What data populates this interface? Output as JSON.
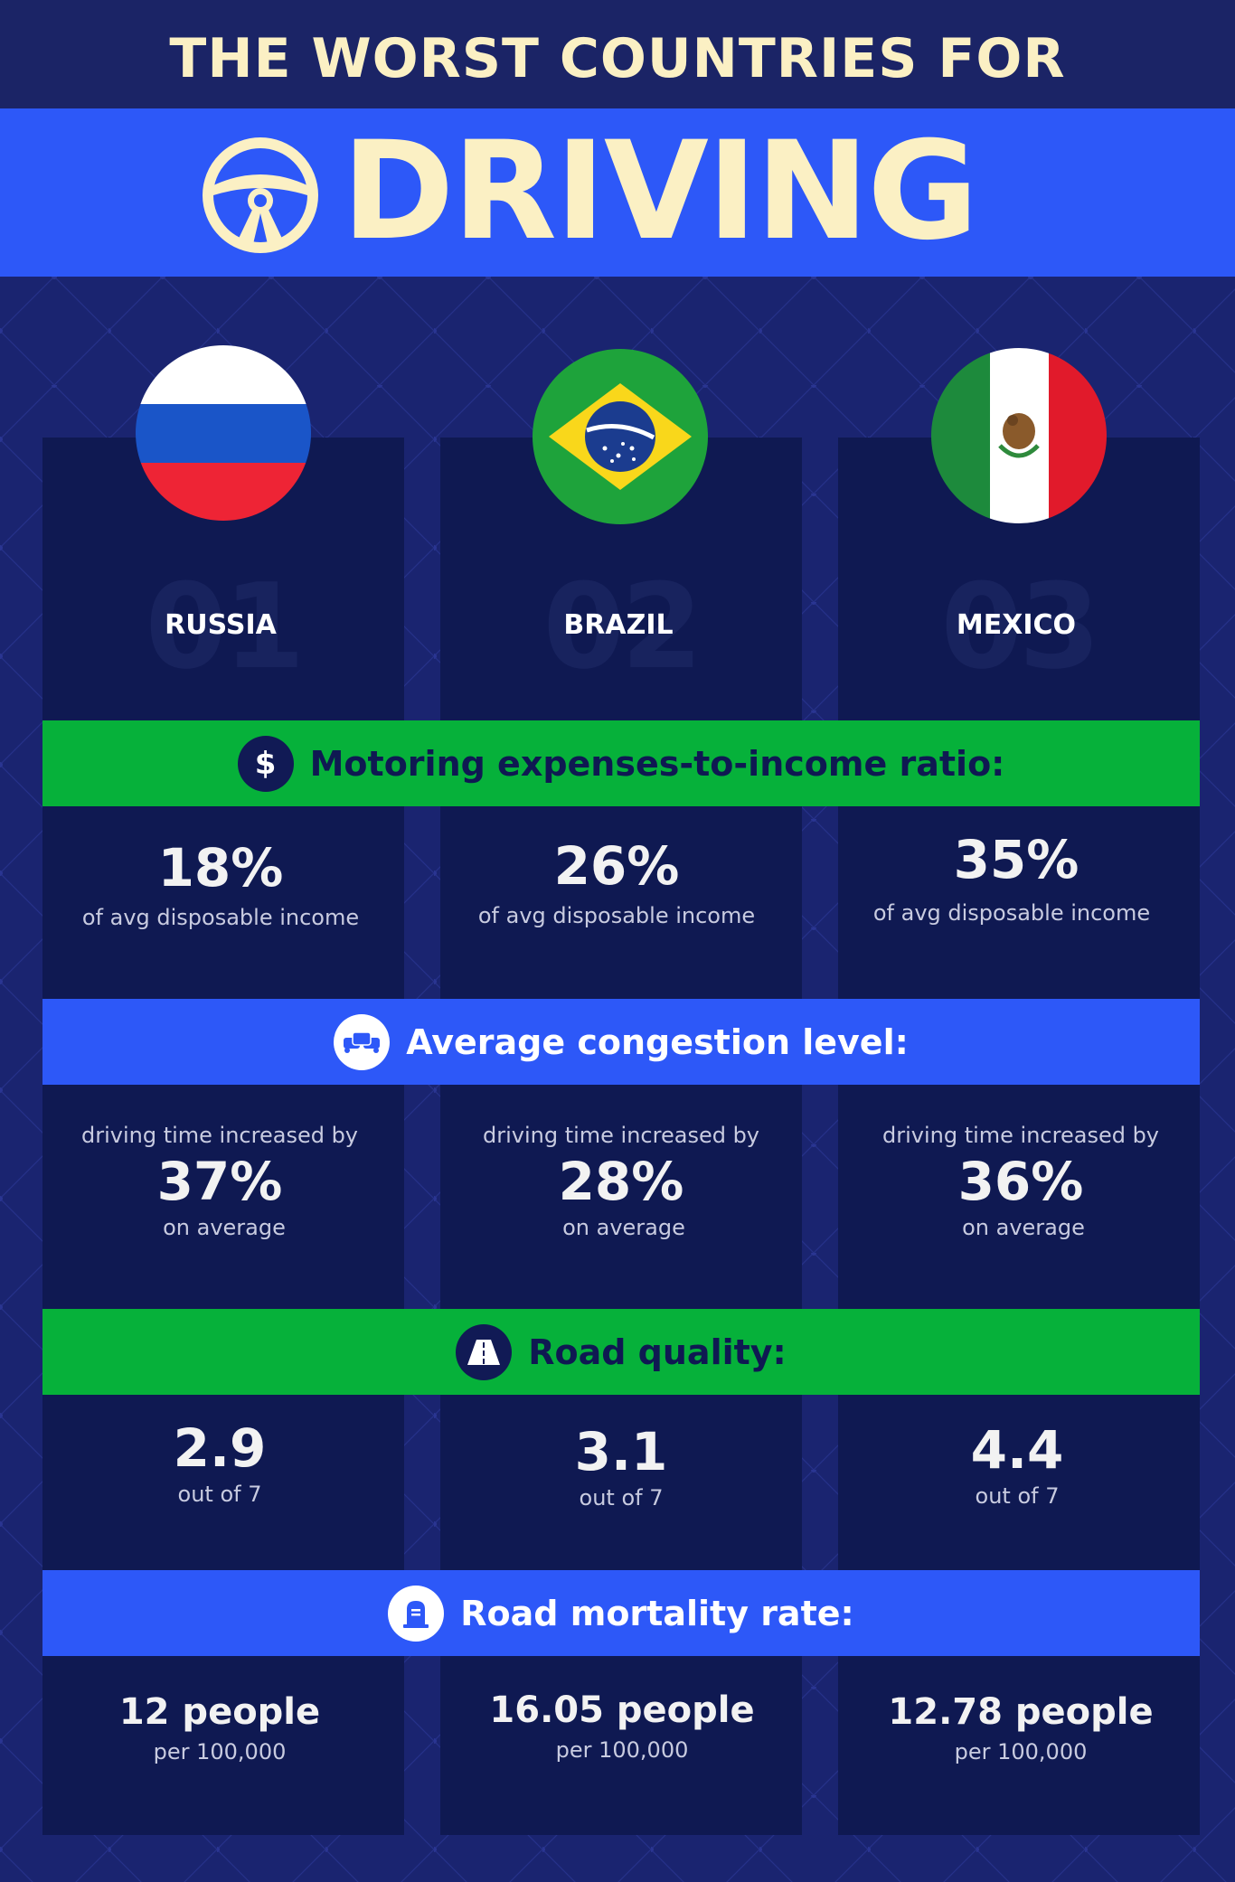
{
  "header": {
    "title_line1": "THE WORST COUNTRIES FOR",
    "title_line2": "DRIVING"
  },
  "countries": [
    {
      "rank": "01",
      "name": "RUSSIA",
      "flag_icon": "russia-flag-icon"
    },
    {
      "rank": "02",
      "name": "BRAZIL",
      "flag_icon": "brazil-flag-icon"
    },
    {
      "rank": "03",
      "name": "MEXICO",
      "flag_icon": "mexico-flag-icon"
    }
  ],
  "sections": {
    "expenses": {
      "label": "Motoring expenses-to-income ratio:",
      "icon": "dollar-icon",
      "values": [
        "18%",
        "26%",
        "35%"
      ],
      "sublabels": [
        "of avg disposable income",
        "of avg disposable  income",
        "of avg disposable income"
      ]
    },
    "congestion": {
      "label": "Average congestion level:",
      "icon": "traffic-cars-icon",
      "prefix": "driving time increased by",
      "values": [
        "37%",
        "28%",
        "36%"
      ],
      "suffix": "on average"
    },
    "road_quality": {
      "label": "Road quality:",
      "icon": "road-icon",
      "values": [
        "2.9",
        "3.1",
        "4.4"
      ],
      "sublabel": "out of 7"
    },
    "mortality": {
      "label": "Road mortality rate:",
      "icon": "gravestone-icon",
      "values": [
        "12 people",
        "16.05 people",
        "12.78 people"
      ],
      "sublabel": "per 100,000"
    }
  },
  "colors": {
    "background": "#1a2470",
    "title_band": "#2d58f8",
    "title_text": "#fbf0c4",
    "column": "#0f1952",
    "green_banner": "#06b13a",
    "blue_banner": "#2d58f8"
  }
}
